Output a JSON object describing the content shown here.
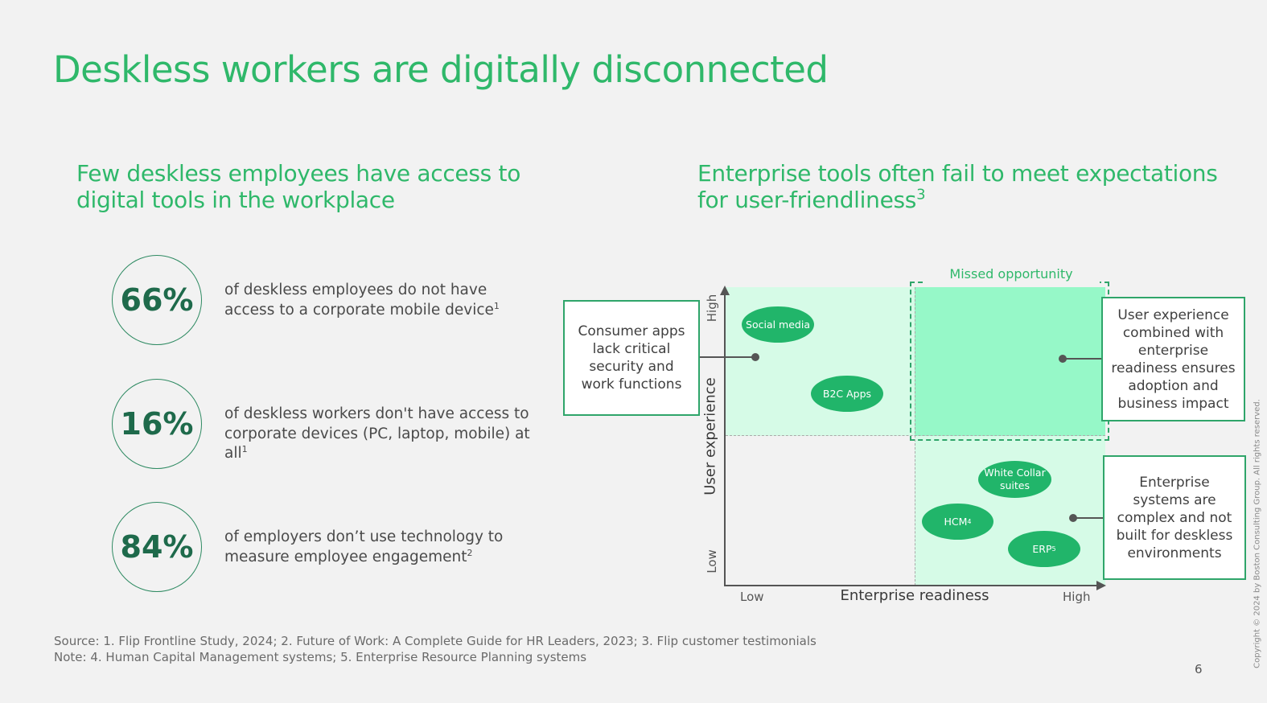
{
  "title": "Deskless workers are digitally disconnected",
  "left": {
    "heading": "Few deskless employees have access to digital tools in the workplace",
    "stats": [
      {
        "value": "66%",
        "text": "of deskless employees do not have access to a corporate mobile device",
        "note": "1"
      },
      {
        "value": "16%",
        "text": "of deskless workers don't have access to corporate devices (PC, laptop, mobile) at all",
        "note": "1"
      },
      {
        "value": "84%",
        "text": "of employers don’t use technology to measure employee engagement",
        "note": "2"
      }
    ]
  },
  "right": {
    "heading": "Enterprise tools often fail to meet expectations for user-friendliness",
    "heading_note": "3",
    "missed_label": "Missed opportunity",
    "y_axis": {
      "label": "User experience",
      "low": "Low",
      "high": "High"
    },
    "x_axis": {
      "label": "Enterprise readiness",
      "low": "Low",
      "high": "High"
    },
    "bubbles": {
      "social": "Social media",
      "b2c": "B2C Apps",
      "white": "White Collar suites",
      "hcm": "HCM",
      "hcm_note": "4",
      "erp": "ERP",
      "erp_note": "5"
    },
    "callouts": {
      "consumer": "Consumer apps lack critical security and work functions",
      "ux": "User experience combined with enterprise readiness ensures adoption and business impact",
      "enterprise": "Enterprise systems are complex and not built for deskless environments"
    },
    "colors": {
      "accent": "#2fb86a",
      "quadrant_light": "#d6fbe7",
      "quadrant_bright": "#96f8c8",
      "bubble": "#21b56a"
    }
  },
  "footer": {
    "source": "Source: 1. Flip Frontline Study, 2024; 2. Future of Work: A Complete Guide for HR Leaders, 2023; 3. Flip customer testimonials",
    "note": "Note: 4. Human Capital Management systems; 5. Enterprise Resource Planning systems",
    "page": "6",
    "copyright": "Copyright © 2024 by Boston Consulting Group. All rights reserved."
  }
}
